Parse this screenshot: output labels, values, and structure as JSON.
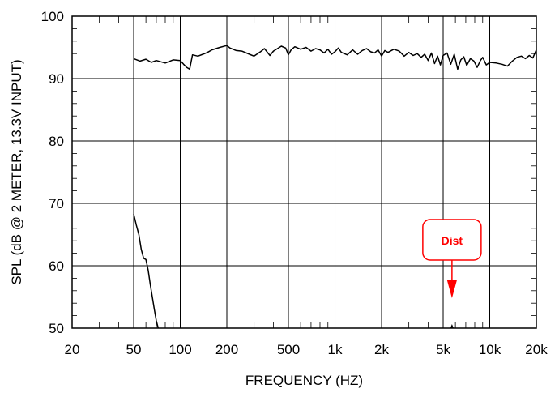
{
  "chart_data": {
    "type": "line",
    "title": "",
    "xlabel": "FREQUENCY  (HZ)",
    "ylabel": "SPL (dB @ 2 METER, 13.3V INPUT)",
    "xscale": "log",
    "xlim": [
      20,
      20000
    ],
    "ylim": [
      50,
      100
    ],
    "grid": true,
    "x_ticks": [
      {
        "value": 20,
        "label": "20"
      },
      {
        "value": 50,
        "label": "50"
      },
      {
        "value": 100,
        "label": "100"
      },
      {
        "value": 200,
        "label": "200"
      },
      {
        "value": 500,
        "label": "500"
      },
      {
        "value": 1000,
        "label": "1k"
      },
      {
        "value": 2000,
        "label": "2k"
      },
      {
        "value": 5000,
        "label": "5k"
      },
      {
        "value": 10000,
        "label": "10k"
      },
      {
        "value": 20000,
        "label": "20k"
      }
    ],
    "y_ticks": [
      {
        "value": 50,
        "label": "50"
      },
      {
        "value": 60,
        "label": "60"
      },
      {
        "value": 70,
        "label": "70"
      },
      {
        "value": 80,
        "label": "80"
      },
      {
        "value": 90,
        "label": "90"
      },
      {
        "value": 100,
        "label": "100"
      }
    ],
    "series": [
      {
        "name": "SPL",
        "color": "#000000",
        "x": [
          50,
          55,
          60,
          65,
          70,
          80,
          90,
          100,
          105,
          110,
          115,
          120,
          130,
          140,
          150,
          160,
          170,
          180,
          200,
          210,
          230,
          250,
          280,
          300,
          330,
          350,
          380,
          400,
          450,
          480,
          500,
          520,
          550,
          600,
          650,
          700,
          750,
          800,
          850,
          900,
          950,
          1000,
          1050,
          1100,
          1200,
          1300,
          1400,
          1500,
          1600,
          1700,
          1800,
          1900,
          2000,
          2100,
          2200,
          2400,
          2600,
          2800,
          3000,
          3200,
          3400,
          3600,
          3800,
          4000,
          4200,
          4400,
          4600,
          4800,
          5000,
          5300,
          5600,
          5900,
          6200,
          6500,
          6800,
          7100,
          7500,
          7900,
          8300,
          8700,
          9000,
          9500,
          10000,
          11000,
          12000,
          13000,
          14000,
          15000,
          16000,
          17000,
          18000,
          19000,
          20000
        ],
        "y": [
          93.2,
          92.8,
          93.1,
          92.6,
          92.9,
          92.5,
          93.0,
          92.9,
          92.3,
          91.8,
          91.5,
          93.8,
          93.6,
          93.9,
          94.2,
          94.6,
          94.8,
          95.0,
          95.3,
          94.9,
          94.5,
          94.4,
          93.9,
          93.6,
          94.3,
          94.8,
          93.7,
          94.4,
          95.2,
          94.9,
          93.8,
          94.6,
          95.1,
          94.7,
          95.0,
          94.4,
          94.8,
          94.6,
          94.1,
          94.7,
          93.9,
          94.3,
          94.9,
          94.2,
          93.8,
          94.6,
          93.9,
          94.5,
          94.8,
          94.3,
          94.1,
          94.6,
          93.6,
          94.5,
          94.2,
          94.7,
          94.4,
          93.6,
          94.2,
          93.7,
          94.0,
          93.4,
          93.9,
          92.9,
          94.1,
          92.4,
          93.6,
          92.2,
          93.7,
          94.1,
          92.3,
          93.9,
          91.5,
          93.0,
          93.5,
          92.1,
          93.2,
          92.8,
          91.8,
          92.9,
          93.4,
          92.2,
          92.6,
          92.5,
          92.3,
          92.0,
          92.8,
          93.4,
          93.6,
          93.2,
          93.7,
          93.3,
          94.6
        ]
      },
      {
        "name": "Dist",
        "color": "#000000",
        "x": [
          50,
          52,
          54,
          56,
          58,
          60,
          62,
          64,
          66,
          68,
          70,
          72
        ],
        "y": [
          68.3,
          66.5,
          65.0,
          62.6,
          61.2,
          61.0,
          59.3,
          57.0,
          55.0,
          53.0,
          51.2,
          50.0
        ]
      }
    ],
    "annotations": [
      {
        "text": "Dist",
        "color": "#ff0000",
        "target_x": 5700,
        "target_y": 50
      }
    ]
  }
}
